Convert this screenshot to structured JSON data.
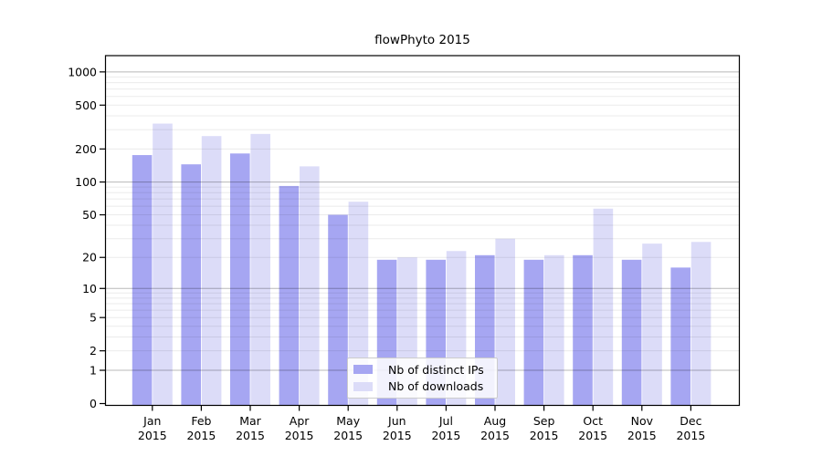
{
  "title": "flowPhyto 2015",
  "chart_data": {
    "type": "bar",
    "title": "flowPhyto 2015",
    "y_scale": "log1p",
    "ylim": [
      0,
      1400
    ],
    "grid": true,
    "legend_position": "bottom-center",
    "categories": [
      "Jan",
      "Feb",
      "Mar",
      "Apr",
      "May",
      "Jun",
      "Jul",
      "Aug",
      "Sep",
      "Oct",
      "Nov",
      "Dec"
    ],
    "year_label": "2015",
    "y_ticks": [
      0,
      1,
      2,
      5,
      10,
      20,
      50,
      100,
      200,
      500,
      1000
    ],
    "minor_gridlines": [
      2,
      3,
      4,
      5,
      6,
      7,
      8,
      9,
      20,
      30,
      40,
      50,
      60,
      70,
      80,
      90,
      200,
      300,
      400,
      500,
      600,
      700,
      800,
      900
    ],
    "major_gridlines": [
      1,
      10,
      100,
      1000
    ],
    "series": [
      {
        "name": "Nb of distinct IPs",
        "color": "#a6a6f2",
        "values": [
          176,
          145,
          182,
          92,
          50,
          19,
          19,
          21,
          19,
          21,
          19,
          16
        ]
      },
      {
        "name": "Nb of downloads",
        "color": "#dcdcf8",
        "values": [
          340,
          262,
          274,
          139,
          66,
          20,
          23,
          30,
          21,
          57,
          27,
          28
        ]
      }
    ],
    "colors": {
      "distinct_ips": "#a6a6f2",
      "downloads": "#dcdcf8",
      "minor_grid": "rgba(0,0,0,0.08)",
      "major_grid": "rgba(0,0,0,0.28)",
      "axis": "#000000"
    }
  },
  "legend": {
    "items": [
      {
        "label": "Nb of distinct IPs"
      },
      {
        "label": "Nb of downloads"
      }
    ]
  }
}
